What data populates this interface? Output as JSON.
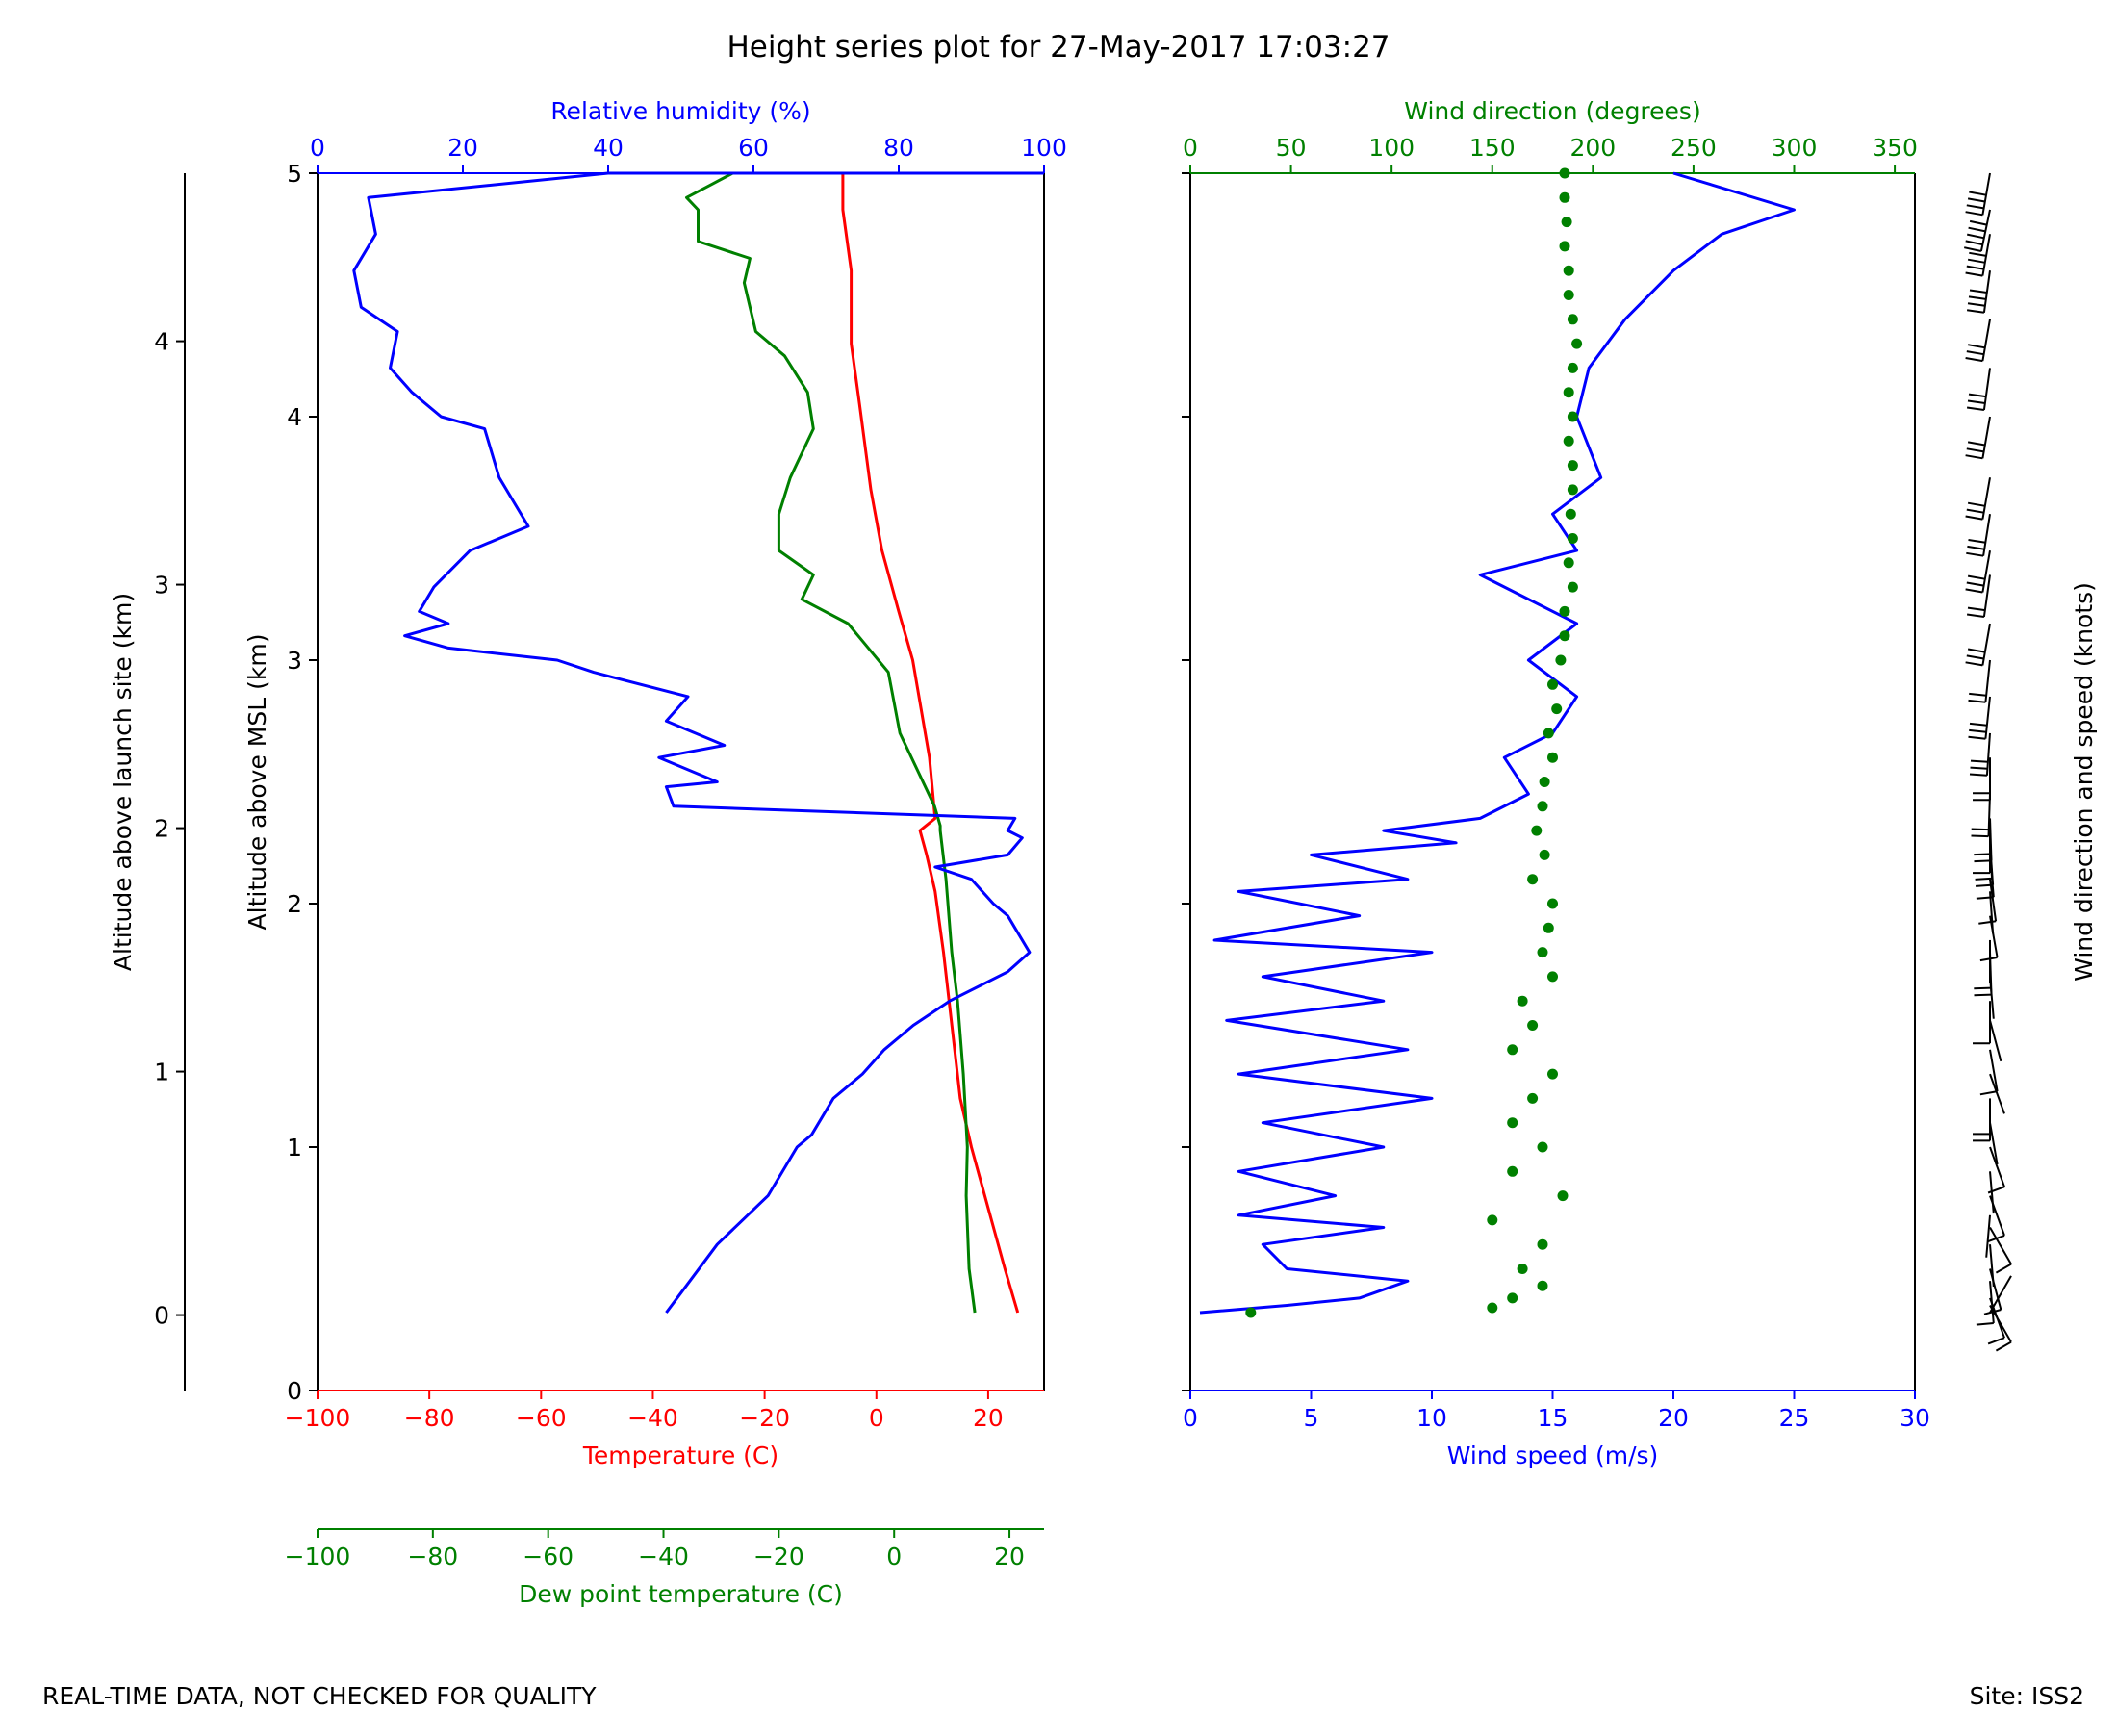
{
  "title": "Height series plot for 27-May-2017 17:03:27",
  "footer": {
    "left": "REAL-TIME DATA, NOT CHECKED FOR QUALITY",
    "right": "Site: ISS2"
  },
  "colors": {
    "blue": "#0000ff",
    "red": "#ff0000",
    "green": "#008000",
    "black": "#000000"
  },
  "chart_data": [
    {
      "type": "line",
      "name": "thermo-panel",
      "y_axis_msl": {
        "label": "Altitude above MSL (km)",
        "range": [
          0,
          5
        ],
        "ticks": [
          0,
          1,
          2,
          3,
          4,
          5
        ]
      },
      "y_axis_launch": {
        "label": "Altitude above launch site (km)",
        "range": [
          -0.31,
          4.69
        ],
        "ticks": [
          0,
          1,
          2,
          3,
          4
        ]
      },
      "x_axis_temperature": {
        "label": "Temperature (C)",
        "range": [
          -100,
          30
        ],
        "ticks": [
          -100,
          -80,
          -60,
          -40,
          -20,
          0,
          20
        ]
      },
      "x_axis_dewpoint": {
        "label": "Dew point temperature (C)",
        "range": [
          -100,
          26
        ],
        "ticks": [
          -100,
          -80,
          -60,
          -40,
          -20,
          0,
          20
        ]
      },
      "x_axis_humidity": {
        "label": "Relative humidity (%)",
        "range": [
          0,
          100
        ],
        "ticks": [
          0,
          20,
          40,
          60,
          80,
          100
        ]
      },
      "series": [
        {
          "name": "Temperature (C)",
          "axis": "temperature",
          "color": "#ff0000",
          "points": [
            [
              25.3,
              0.32
            ],
            [
              23,
              0.5
            ],
            [
              20,
              0.75
            ],
            [
              17,
              1.0
            ],
            [
              15,
              1.2
            ],
            [
              13.5,
              1.5
            ],
            [
              12,
              1.8
            ],
            [
              10.5,
              2.05
            ],
            [
              9,
              2.2
            ],
            [
              7.8,
              2.3
            ],
            [
              10.5,
              2.35
            ],
            [
              9.5,
              2.6
            ],
            [
              8,
              2.8
            ],
            [
              6.5,
              3.0
            ],
            [
              4,
              3.2
            ],
            [
              1,
              3.45
            ],
            [
              -1,
              3.7
            ],
            [
              -3,
              4.05
            ],
            [
              -4.5,
              4.3
            ],
            [
              -4.5,
              4.6
            ],
            [
              -6,
              4.85
            ],
            [
              -6,
              5.0
            ]
          ]
        },
        {
          "name": "Dew point temperature (C)",
          "axis": "dewpoint",
          "color": "#008000",
          "points": [
            [
              14,
              0.32
            ],
            [
              13,
              0.5
            ],
            [
              12.5,
              0.8
            ],
            [
              12.7,
              1.0
            ],
            [
              12,
              1.3
            ],
            [
              11,
              1.6
            ],
            [
              10,
              1.8
            ],
            [
              9,
              2.1
            ],
            [
              8,
              2.3
            ],
            [
              8,
              2.32
            ],
            [
              7,
              2.4
            ],
            [
              1,
              2.7
            ],
            [
              -1,
              2.95
            ],
            [
              -8,
              3.15
            ],
            [
              -16,
              3.25
            ],
            [
              -14,
              3.35
            ],
            [
              -20,
              3.45
            ],
            [
              -20,
              3.6
            ],
            [
              -18,
              3.75
            ],
            [
              -14,
              3.95
            ],
            [
              -15,
              4.1
            ],
            [
              -19,
              4.25
            ],
            [
              -24,
              4.35
            ],
            [
              -26,
              4.55
            ],
            [
              -25,
              4.65
            ],
            [
              -34,
              4.72
            ],
            [
              -34,
              4.85
            ],
            [
              -36,
              4.9
            ],
            [
              -32,
              4.95
            ],
            [
              -28,
              5.0
            ]
          ]
        },
        {
          "name": "Relative humidity (%)",
          "axis": "humidity",
          "color": "#0000ff",
          "points": [
            [
              48,
              0.32
            ],
            [
              50,
              0.4
            ],
            [
              55,
              0.6
            ],
            [
              62,
              0.8
            ],
            [
              66,
              1.0
            ],
            [
              68,
              1.05
            ],
            [
              71,
              1.2
            ],
            [
              75,
              1.3
            ],
            [
              78,
              1.4
            ],
            [
              82,
              1.5
            ],
            [
              87,
              1.6
            ],
            [
              95,
              1.72
            ],
            [
              98,
              1.8
            ],
            [
              96,
              1.9
            ],
            [
              95,
              1.95
            ],
            [
              93,
              2.0
            ],
            [
              90,
              2.1
            ],
            [
              85,
              2.15
            ],
            [
              95,
              2.2
            ],
            [
              97,
              2.27
            ],
            [
              95,
              2.3
            ],
            [
              96,
              2.35
            ],
            [
              49,
              2.4
            ],
            [
              48,
              2.48
            ],
            [
              55,
              2.5
            ],
            [
              51,
              2.55
            ],
            [
              47,
              2.6
            ],
            [
              56,
              2.65
            ],
            [
              52,
              2.7
            ],
            [
              48,
              2.75
            ],
            [
              51,
              2.85
            ],
            [
              38,
              2.95
            ],
            [
              33,
              3.0
            ],
            [
              18,
              3.05
            ],
            [
              12,
              3.1
            ],
            [
              18,
              3.15
            ],
            [
              14,
              3.2
            ],
            [
              16,
              3.3
            ],
            [
              21,
              3.45
            ],
            [
              29,
              3.55
            ],
            [
              27,
              3.65
            ],
            [
              25,
              3.75
            ],
            [
              23,
              3.95
            ],
            [
              17,
              4.0
            ],
            [
              13,
              4.1
            ],
            [
              10,
              4.2
            ],
            [
              11,
              4.35
            ],
            [
              6,
              4.45
            ],
            [
              5,
              4.6
            ],
            [
              8,
              4.75
            ],
            [
              7,
              4.9
            ],
            [
              40,
              5.0
            ],
            [
              100,
              5.0
            ]
          ]
        }
      ]
    },
    {
      "type": "line",
      "name": "wind-panel",
      "x_axis_speed": {
        "label": "Wind speed (m/s)",
        "range": [
          0,
          30
        ],
        "ticks": [
          0,
          5,
          10,
          15,
          20,
          25,
          30
        ]
      },
      "x_axis_direction": {
        "label": "Wind direction (degrees)",
        "range": [
          0,
          360
        ],
        "ticks": [
          0,
          50,
          100,
          150,
          200,
          250,
          300,
          350
        ]
      },
      "barb_label": "Wind direction and speed (knots)",
      "series": [
        {
          "name": "Wind speed (m/s)",
          "axis": "speed",
          "color": "#0000ff",
          "points": [
            [
              0.4,
              0.32
            ],
            [
              4,
              0.35
            ],
            [
              7,
              0.38
            ],
            [
              9,
              0.45
            ],
            [
              4,
              0.5
            ],
            [
              3,
              0.6
            ],
            [
              8,
              0.67
            ],
            [
              2,
              0.72
            ],
            [
              6,
              0.8
            ],
            [
              2,
              0.9
            ],
            [
              8,
              1.0
            ],
            [
              3,
              1.1
            ],
            [
              10,
              1.2
            ],
            [
              2,
              1.3
            ],
            [
              9,
              1.4
            ],
            [
              1.5,
              1.52
            ],
            [
              8,
              1.6
            ],
            [
              3,
              1.7
            ],
            [
              10,
              1.8
            ],
            [
              1,
              1.85
            ],
            [
              7,
              1.95
            ],
            [
              2,
              2.05
            ],
            [
              9,
              2.1
            ],
            [
              5,
              2.2
            ],
            [
              11,
              2.25
            ],
            [
              8,
              2.3
            ],
            [
              12,
              2.35
            ],
            [
              14,
              2.45
            ],
            [
              13,
              2.6
            ],
            [
              15,
              2.7
            ],
            [
              16,
              2.85
            ],
            [
              14,
              3.0
            ],
            [
              16,
              3.15
            ],
            [
              12,
              3.35
            ],
            [
              16,
              3.45
            ],
            [
              15,
              3.6
            ],
            [
              17,
              3.75
            ],
            [
              16,
              4.0
            ],
            [
              16.5,
              4.2
            ],
            [
              18,
              4.4
            ],
            [
              20,
              4.6
            ],
            [
              22,
              4.75
            ],
            [
              25,
              4.85
            ],
            [
              20,
              5.0
            ]
          ]
        },
        {
          "name": "Wind direction (degrees)",
          "axis": "direction",
          "color": "#008000",
          "points": [
            [
              30,
              0.32
            ],
            [
              150,
              0.34
            ],
            [
              160,
              0.38
            ],
            [
              175,
              0.43
            ],
            [
              165,
              0.5
            ],
            [
              175,
              0.6
            ],
            [
              150,
              0.7
            ],
            [
              185,
              0.8
            ],
            [
              160,
              0.9
            ],
            [
              175,
              1.0
            ],
            [
              160,
              1.1
            ],
            [
              170,
              1.2
            ],
            [
              180,
              1.3
            ],
            [
              160,
              1.4
            ],
            [
              170,
              1.5
            ],
            [
              165,
              1.6
            ],
            [
              180,
              1.7
            ],
            [
              175,
              1.8
            ],
            [
              178,
              1.9
            ],
            [
              180,
              2.0
            ],
            [
              170,
              2.1
            ],
            [
              176,
              2.2
            ],
            [
              172,
              2.3
            ],
            [
              175,
              2.4
            ],
            [
              176,
              2.5
            ],
            [
              180,
              2.6
            ],
            [
              178,
              2.7
            ],
            [
              182,
              2.8
            ],
            [
              180,
              2.9
            ],
            [
              184,
              3.0
            ],
            [
              186,
              3.1
            ],
            [
              186,
              3.2
            ],
            [
              190,
              3.3
            ],
            [
              188,
              3.4
            ],
            [
              190,
              3.5
            ],
            [
              189,
              3.6
            ],
            [
              190,
              3.7
            ],
            [
              190,
              3.8
            ],
            [
              188,
              3.9
            ],
            [
              190,
              4.0
            ],
            [
              188,
              4.1
            ],
            [
              190,
              4.2
            ],
            [
              192,
              4.3
            ],
            [
              190,
              4.4
            ],
            [
              188,
              4.5
            ],
            [
              188,
              4.6
            ],
            [
              186,
              4.7
            ],
            [
              187,
              4.8
            ],
            [
              186,
              4.9
            ],
            [
              186,
              5.0
            ]
          ]
        }
      ]
    }
  ]
}
